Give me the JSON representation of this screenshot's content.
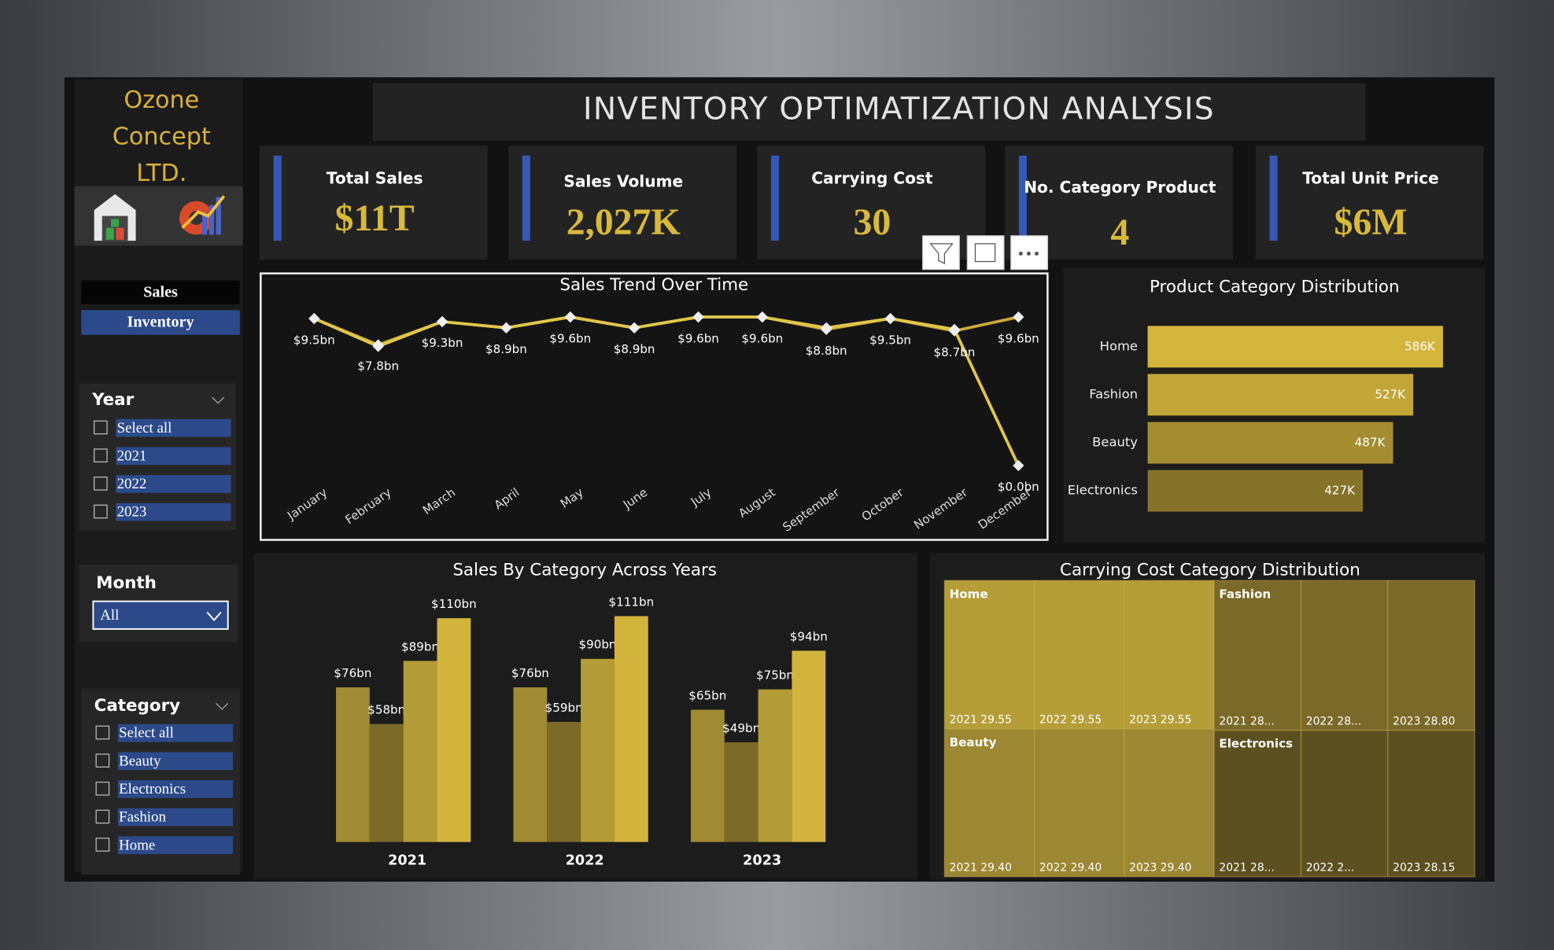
{
  "header": {
    "company": [
      "Ozone",
      "Concept",
      "LTD."
    ],
    "title": "INVENTORY OPTIMATIZATION ANALYSIS"
  },
  "nav": [
    "Sales",
    "Inventory"
  ],
  "kpis": [
    {
      "label": "Total Sales",
      "value": "$11T"
    },
    {
      "label": "Sales Volume",
      "value": "2,027K"
    },
    {
      "label": "Carrying Cost",
      "value": "30"
    },
    {
      "label": "No. Category Product",
      "value": "4"
    },
    {
      "label": "Total Unit Price",
      "value": "$6M"
    }
  ],
  "filters": {
    "year": {
      "title": "Year",
      "options": [
        "Select all",
        "2021",
        "2022",
        "2023"
      ]
    },
    "month": {
      "title": "Month",
      "value": "All"
    },
    "category": {
      "title": "Category",
      "options": [
        "Select all",
        "Beauty",
        "Electronics",
        "Fashion",
        "Home"
      ]
    }
  },
  "chart_data": [
    {
      "type": "line",
      "title": "Sales Trend Over Time",
      "categories": [
        "January",
        "February",
        "March",
        "April",
        "May",
        "June",
        "July",
        "August",
        "September",
        "October",
        "November",
        "December"
      ],
      "series": [
        {
          "color": "#c9a93a",
          "values": [
            9.5,
            7.8,
            9.3,
            8.9,
            9.6,
            8.9,
            9.6,
            9.6,
            8.8,
            9.5,
            8.7,
            9.6
          ],
          "value_labels": [
            "$9.5bn",
            "$7.8bn",
            "$9.3bn",
            "$8.9bn",
            "$9.6bn",
            "$8.9bn",
            "$9.6bn",
            "$9.6bn",
            "$8.8bn",
            "$9.5bn",
            "$8.7bn",
            "$9.6bn"
          ]
        },
        {
          "color": "#e0c64a",
          "values": [
            9.5,
            7.7,
            9.3,
            8.9,
            9.6,
            8.9,
            9.6,
            9.6,
            8.9,
            9.5,
            8.8,
            0.0
          ],
          "value_labels": [
            null,
            null,
            null,
            null,
            null,
            null,
            null,
            null,
            null,
            null,
            null,
            "$0.0bn"
          ]
        }
      ]
    },
    {
      "type": "bar",
      "orientation": "horizontal",
      "title": "Product Category Distribution",
      "categories": [
        "Home",
        "Fashion",
        "Beauty",
        "Electronics"
      ],
      "values": [
        586,
        527,
        487,
        427
      ],
      "value_labels": [
        "586K",
        "527K",
        "487K",
        "427K"
      ],
      "colors": [
        "#d4b53c",
        "#c2a637",
        "#a48d31",
        "#85732a"
      ]
    },
    {
      "type": "bar",
      "title": "Sales By Category Across Years",
      "categories": [
        "2021",
        "2022",
        "2023"
      ],
      "series": [
        {
          "color": "#a08a32",
          "values": [
            76,
            76,
            65
          ],
          "value_labels": [
            "$76bn",
            "$76bn",
            "$65bn"
          ]
        },
        {
          "color": "#7c6b28",
          "values": [
            58,
            59,
            49
          ],
          "value_labels": [
            "$58bn",
            "$59bn",
            "$49bn"
          ]
        },
        {
          "color": "#b39c38",
          "values": [
            89,
            90,
            75
          ],
          "value_labels": [
            "$89bn",
            "$90bn",
            "$75bn"
          ]
        },
        {
          "color": "#d2b43d",
          "values": [
            110,
            111,
            94
          ],
          "value_labels": [
            "$110bn",
            "$111bn",
            "$94bn"
          ]
        }
      ]
    },
    {
      "type": "treemap",
      "title": "Carrying Cost Category Distribution",
      "groups": [
        {
          "name": "Home",
          "color": "#b59d38",
          "children": [
            {
              "label": "2021 29.55",
              "value": 29.55
            },
            {
              "label": "2022 29.55",
              "value": 29.55
            },
            {
              "label": "2023 29.55",
              "value": 29.55
            }
          ]
        },
        {
          "name": "Beauty",
          "color": "#9c8732",
          "children": [
            {
              "label": "2021 29.40",
              "value": 29.4
            },
            {
              "label": "2022 29.40",
              "value": 29.4
            },
            {
              "label": "2023 29.40",
              "value": 29.4
            }
          ]
        },
        {
          "name": "Fashion",
          "color": "#7a6a29",
          "children": [
            {
              "label": "2021 28...",
              "value": 28.8
            },
            {
              "label": "2022 28...",
              "value": 28.8
            },
            {
              "label": "2023 28.80",
              "value": 28.8
            }
          ]
        },
        {
          "name": "Electronics",
          "color": "#5c5020",
          "children": [
            {
              "label": "2021 28...",
              "value": 28.15
            },
            {
              "label": "2022 2...",
              "value": 28.15
            },
            {
              "label": "2023 28.15",
              "value": 28.15
            }
          ]
        }
      ]
    }
  ]
}
